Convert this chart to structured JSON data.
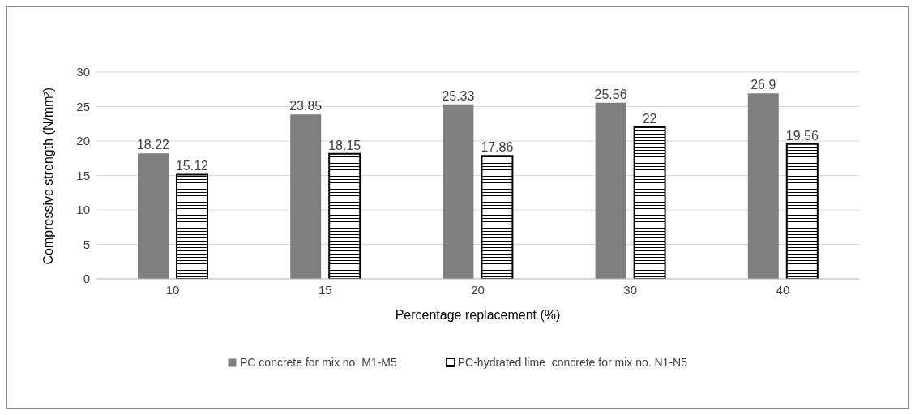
{
  "chart_data": {
    "type": "bar",
    "xlabel": "Percentage replacement (%)",
    "ylabel": "Compressive strength (N/mm²)",
    "categories": [
      "10",
      "15",
      "20",
      "30",
      "40"
    ],
    "series": [
      {
        "name": "PC concrete for mix no. M1-M5",
        "color": "#7f7f7f",
        "values": [
          18.22,
          23.85,
          25.33,
          25.56,
          26.9
        ]
      },
      {
        "name": "PC-hydrated lime  concrete for mix no. N1-N5",
        "color": "#000000",
        "values": [
          15.12,
          18.15,
          17.86,
          22,
          19.56
        ]
      }
    ],
    "ylim": [
      0,
      30
    ],
    "yticks": [
      0,
      5,
      10,
      15,
      20,
      25,
      30
    ],
    "grid": "y",
    "legend": "bottom",
    "data_labels": true
  }
}
